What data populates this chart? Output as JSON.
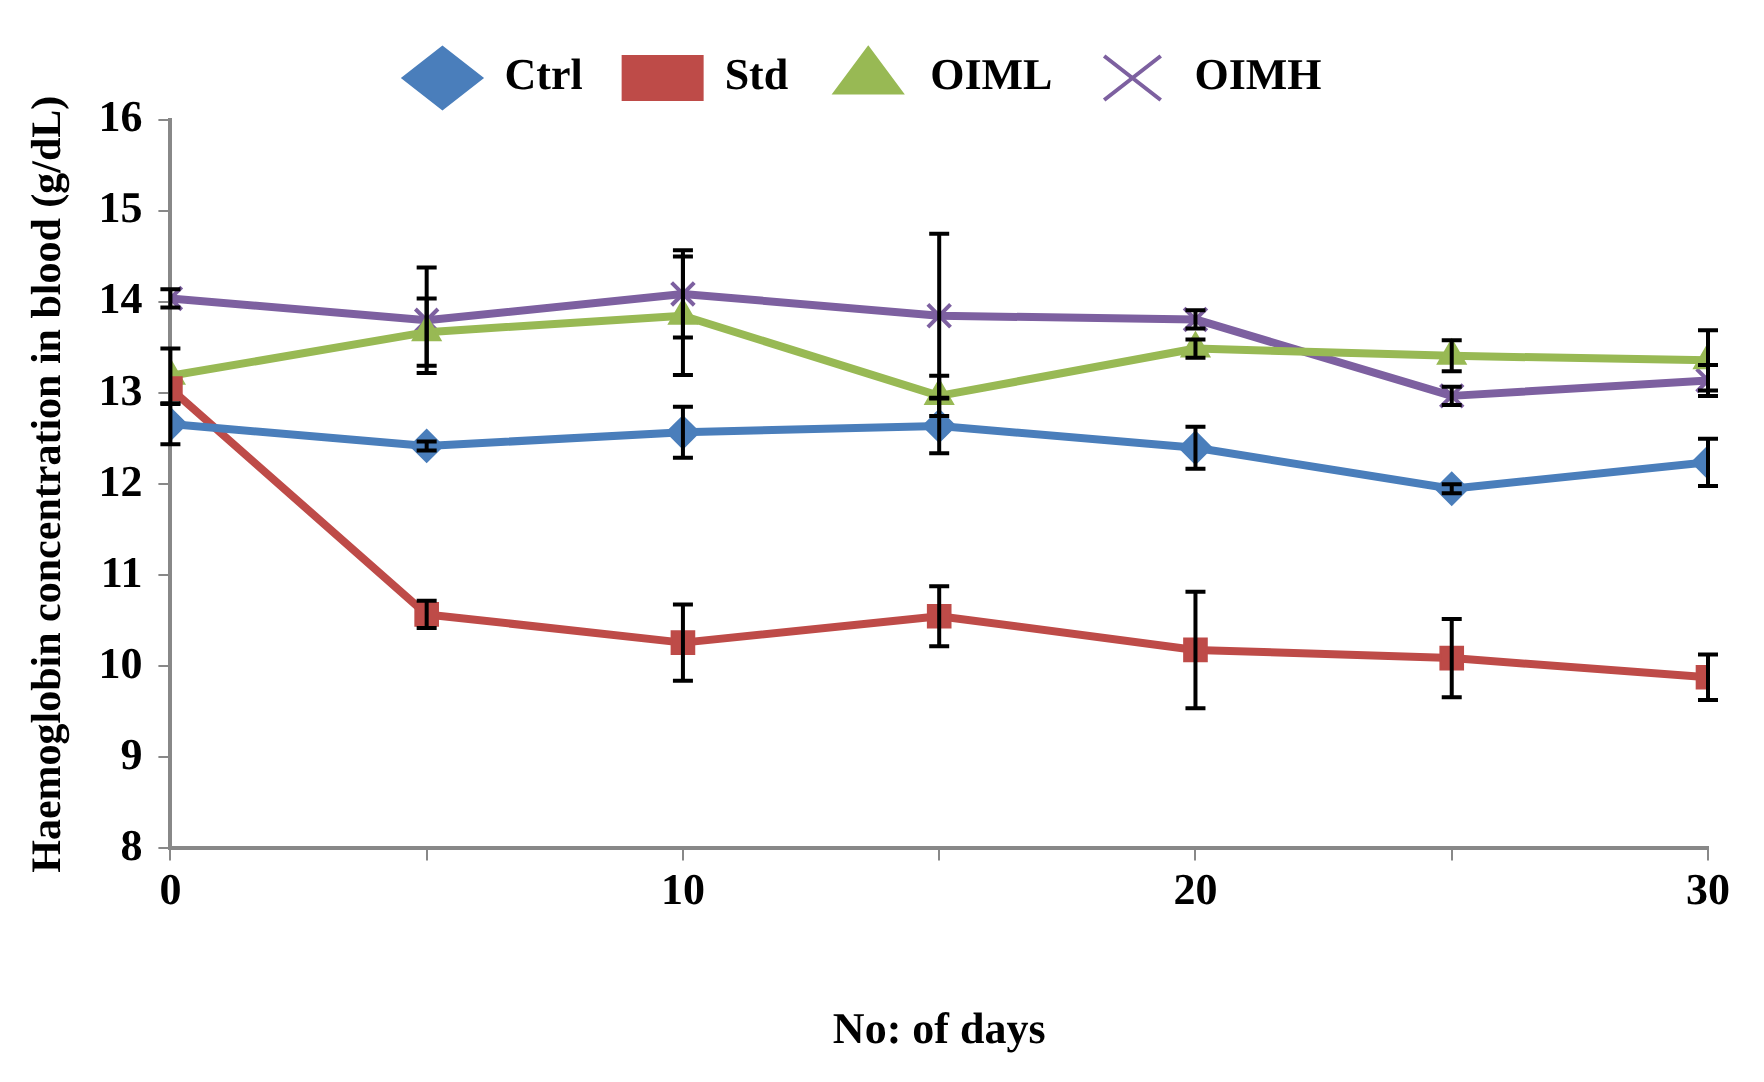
{
  "chart_data": {
    "type": "line",
    "xlabel": "No: of days",
    "ylabel": "Haemoglobin concentration in blood (g/dL)",
    "x": [
      0,
      5,
      10,
      15,
      20,
      25,
      30
    ],
    "series": [
      {
        "name": "Ctrl",
        "color": "#4a7ebb",
        "marker": "diamond",
        "values": [
          12.66,
          12.42,
          12.57,
          12.64,
          12.4,
          11.95,
          12.24
        ],
        "errors": [
          0.22,
          0.05,
          0.28,
          0.3,
          0.23,
          0.05,
          0.26
        ]
      },
      {
        "name": "Std",
        "color": "#be4b48",
        "marker": "square",
        "values": [
          13.05,
          10.57,
          10.26,
          10.55,
          10.18,
          10.09,
          9.88
        ],
        "errors": [
          null,
          0.15,
          0.42,
          0.33,
          0.64,
          0.43,
          0.25
        ]
      },
      {
        "name": "OIML",
        "color": "#98b954",
        "marker": "triangle",
        "values": [
          13.19,
          13.67,
          13.85,
          12.97,
          13.49,
          13.41,
          13.36
        ],
        "errors": [
          0.3,
          0.37,
          0.65,
          0.22,
          0.1,
          0.17,
          0.33
        ]
      },
      {
        "name": "OIMH",
        "color": "#7d60a0",
        "marker": "cross",
        "values": [
          14.04,
          13.8,
          14.09,
          13.85,
          13.81,
          12.97,
          13.14
        ],
        "errors": [
          0.1,
          0.58,
          0.48,
          0.9,
          0.1,
          0.1,
          0.17
        ]
      }
    ],
    "xlim": [
      0,
      30
    ],
    "xticks": [
      0,
      {
        "value": 5,
        "label": null
      },
      10,
      {
        "value": 15,
        "label": null
      },
      20,
      {
        "value": 25,
        "label": null
      },
      30
    ],
    "ylim": [
      8,
      16
    ],
    "yticks": [
      8,
      9,
      10,
      11,
      12,
      13,
      14,
      15,
      16
    ],
    "grid": false,
    "legend": "top"
  }
}
